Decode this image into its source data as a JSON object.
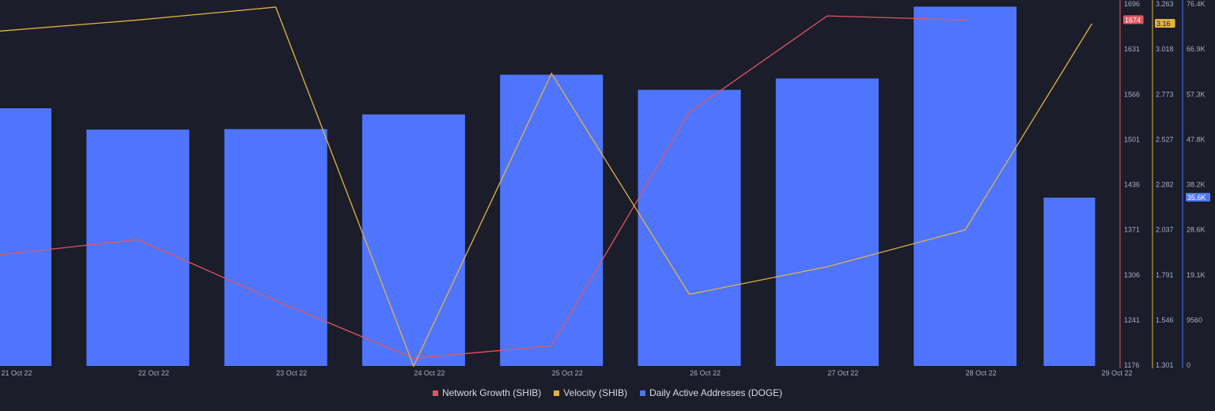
{
  "chart_data": {
    "type": "bar",
    "categories": [
      "21 Oct 22",
      "22 Oct 22",
      "23 Oct 22",
      "24 Oct 22",
      "25 Oct 22",
      "26 Oct 22",
      "27 Oct 22",
      "28 Oct 22",
      "29 Oct 22"
    ],
    "series": [
      {
        "name": "Daily Active Addresses (DOGE)",
        "type": "bar",
        "axis": "right-3",
        "color": "#4f75fe",
        "values": [
          54500,
          50000,
          50100,
          53200,
          61600,
          58400,
          60800,
          76000,
          35600
        ]
      },
      {
        "name": "Network Growth (SHIB)",
        "type": "line",
        "axis": "right-1",
        "color": "#e05561",
        "values": [
          1336,
          1358,
          1270,
          1187,
          1205,
          1541,
          1680,
          1674,
          null
        ]
      },
      {
        "name": "Velocity (SHIB)",
        "type": "line",
        "axis": "right-2",
        "color": "#e3b341",
        "values": [
          3.12,
          3.18,
          3.25,
          1.3,
          2.89,
          1.69,
          1.84,
          2.04,
          3.16
        ]
      }
    ],
    "axes": {
      "network_growth": {
        "ticks": [
          "1696",
          "1631",
          "1566",
          "1501",
          "1436",
          "1371",
          "1306",
          "1241",
          "1176"
        ],
        "range": [
          1176,
          1696
        ],
        "current_label": "1674",
        "current_value": 1674,
        "color": "#e05561"
      },
      "velocity": {
        "ticks": [
          "3.263",
          "3.018",
          "2.773",
          "2.527",
          "2.282",
          "2.037",
          "1.791",
          "1.546",
          "1.301"
        ],
        "range": [
          1.301,
          3.263
        ],
        "current_label": "3.16",
        "current_value": 3.16,
        "color": "#e3b341"
      },
      "active_addresses": {
        "ticks": [
          "76.4K",
          "66.9K",
          "57.3K",
          "47.8K",
          "38.2K",
          "28.6K",
          "19.1K",
          "9560",
          "0"
        ],
        "range": [
          0,
          76400
        ],
        "current_label": "35.6K",
        "current_value": 35600,
        "color": "#4f75fe"
      }
    },
    "grid": false,
    "legend_position": "bottom-center"
  },
  "legend": [
    {
      "label": "Network Growth (SHIB)",
      "color": "#e05561"
    },
    {
      "label": "Velocity (SHIB)",
      "color": "#e3b341"
    },
    {
      "label": "Daily Active Addresses (DOGE)",
      "color": "#4f75fe"
    }
  ]
}
